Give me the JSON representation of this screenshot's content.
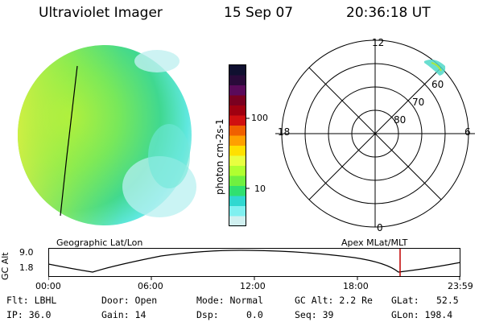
{
  "header": {
    "title": "Ultraviolet Imager",
    "date": "15 Sep 07",
    "time": "20:36:18 UT"
  },
  "colorbar": {
    "unit_label": "photon cm-2s-1",
    "ticks": [
      "100",
      "10"
    ],
    "colors": [
      "#101030",
      "#2a0a3a",
      "#5a0a5a",
      "#7a0020",
      "#a00010",
      "#d01010",
      "#f06000",
      "#ffa000",
      "#ffe000",
      "#e8ff40",
      "#b0ff30",
      "#70f040",
      "#30e070",
      "#30d8d0",
      "#80f0f0",
      "#d0f0f0"
    ]
  },
  "polar": {
    "mlt_labels": [
      "12",
      "18",
      "6",
      "0"
    ],
    "lat_labels": [
      "60",
      "70",
      "80"
    ]
  },
  "timeline": {
    "left_title": "Geographic Lat/Lon",
    "right_title": "Apex MLat/MLT",
    "y_axis_label": "GC Alt",
    "y_ticks": [
      "9.0",
      "1.8"
    ],
    "x_ticks": [
      "00:00",
      "06:00",
      "12:00",
      "18:00",
      "23:59"
    ],
    "current_time_color": "#c00000"
  },
  "status": {
    "filter": "Flt: LBHL",
    "ip": "IP: 36.0",
    "door": "Door: Open",
    "gain": "Gain: 14",
    "mode": "Mode: Normal",
    "dsp": "Dsp:",
    "dsp_value": "0.0",
    "gc_alt": "GC Alt: 2.2 Re",
    "seq": "Seq: 39",
    "glat": "GLat:",
    "glat_value": "52.5",
    "glon": "GLon: 198.4"
  }
}
